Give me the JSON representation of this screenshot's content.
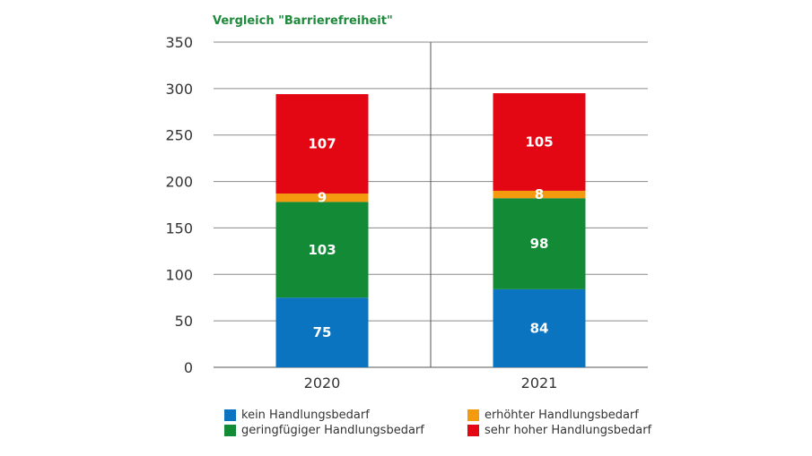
{
  "chart_data": {
    "type": "bar",
    "stacked": true,
    "title": "Vergleich \"Barrierefreiheit\"",
    "categories": [
      "2020",
      "2021"
    ],
    "series": [
      {
        "name": "kein Handlungsbedarf",
        "values": [
          75,
          84
        ],
        "color": "#0b74c0"
      },
      {
        "name": "geringfügiger Handlungsbedarf",
        "values": [
          103,
          98
        ],
        "color": "#128a36"
      },
      {
        "name": "erhöhter Handlungsbedarf",
        "values": [
          9,
          8
        ],
        "color": "#f39a0f"
      },
      {
        "name": "sehr hoher Handlungsbedarf",
        "values": [
          107,
          105
        ],
        "color": "#e30613"
      }
    ],
    "ylim": [
      0,
      350
    ],
    "yticks": [
      "0",
      "50",
      "100",
      "150",
      "200",
      "250",
      "300",
      "350"
    ],
    "grid": true,
    "legend_position": "bottom"
  }
}
